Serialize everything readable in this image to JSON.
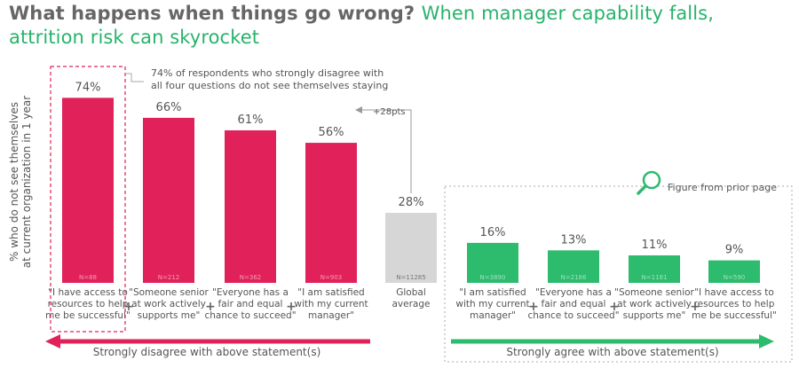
{
  "title": {
    "lead": "What happens when things go wrong?",
    "accent": "When manager capability falls, attrition risk can skyrocket"
  },
  "colors": {
    "disagree": "#e0215a",
    "agree": "#2dbb6e",
    "global": "#d6d6d6",
    "accent_text": "#27b36a"
  },
  "chart_data": [
    {
      "type": "bar",
      "ylabel": "% who do not see themselves at current organization in 1 year",
      "ylabel_lines": [
        "% who do not see themselves",
        "at current organization in 1 year"
      ],
      "categories": [
        [
          "\"I have access to",
          "resources to help",
          "me be successful\""
        ],
        [
          "\"Someone senior",
          "at work actively",
          "supports me\""
        ],
        [
          "\"Everyone has a",
          "fair and equal",
          "chance to succeed\""
        ],
        [
          "\"I am satisfied",
          "with my current",
          "manager\""
        ]
      ],
      "values": [
        74,
        66,
        61,
        56
      ],
      "value_labels": [
        "74%",
        "66%",
        "61%",
        "56%"
      ],
      "n_labels": [
        "N=88",
        "N=212",
        "N=362",
        "N=903"
      ],
      "annotation": [
        "74% of respondents who strongly disagree with",
        "all four questions do not see themselves staying"
      ],
      "delta_label": "+28pts",
      "footer": "Strongly disagree with above statement(s)"
    },
    {
      "type": "bar",
      "categories": [
        [
          "Global",
          "average"
        ]
      ],
      "values": [
        28
      ],
      "value_labels": [
        "28%"
      ],
      "n_labels": [
        "N=11285"
      ]
    },
    {
      "type": "bar",
      "panel_label": "Figure from prior page",
      "categories": [
        [
          "\"I am satisfied",
          "with my current",
          "manager\""
        ],
        [
          "\"Everyone has a",
          "fair and equal",
          "chance to succeed\""
        ],
        [
          "\"Someone senior",
          "at work actively",
          "supports me\""
        ],
        [
          "\"I have access to",
          "resources to help",
          "me be successful\""
        ]
      ],
      "values": [
        16,
        13,
        11,
        9
      ],
      "value_labels": [
        "16%",
        "13%",
        "11%",
        "9%"
      ],
      "n_labels": [
        "N=3890",
        "N=2186",
        "N=1181",
        "N=590"
      ],
      "footer": "Strongly agree with above statement(s)"
    }
  ]
}
